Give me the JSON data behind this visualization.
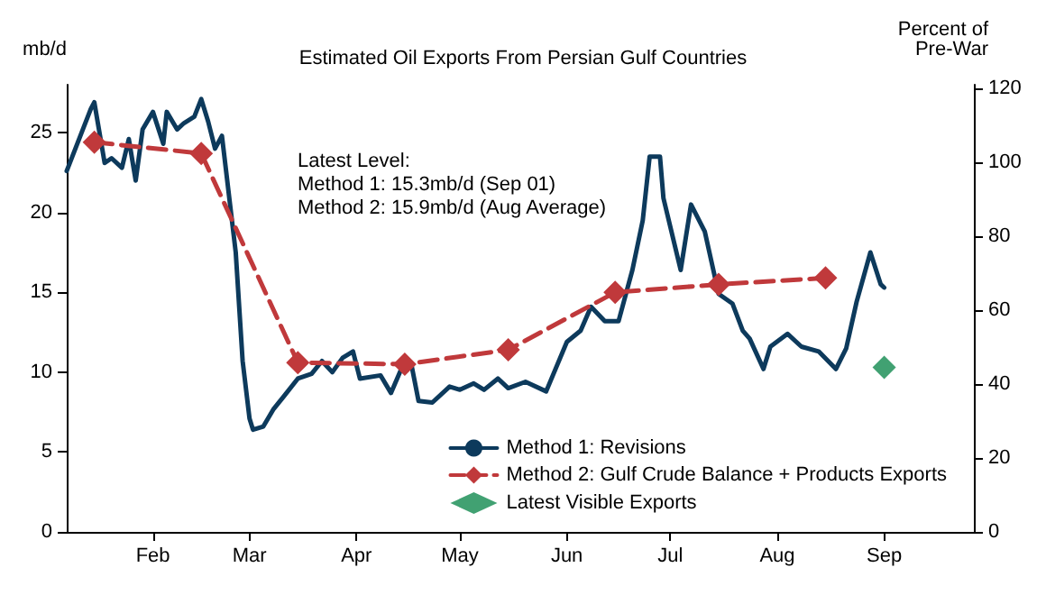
{
  "chart_data": {
    "type": "line",
    "title": "Estimated Oil Exports From Persian Gulf Countries",
    "ylabel": "mb/d",
    "y2label": "Percent of\nPre-War",
    "annotations": [
      "Latest Level:\nMethod 1: 15.3mb/d (Sep 01)\nMethod 2: 15.9mb/d (Aug Average)"
    ],
    "series": [
      {
        "name": "Method 1: Revisions",
        "color": "#0d3a5c",
        "marker": "none",
        "line_style": "solid",
        "x": [
          "--01-07",
          "--01-14",
          "--01-15",
          "--01-18",
          "--01-20",
          "--01-23",
          "--01-25",
          "--01-27",
          "--01-29",
          "--02-01",
          "--02-04",
          "--02-05",
          "--02-08",
          "--02-10",
          "--02-13",
          "--02-15",
          "--02-17",
          "--02-19",
          "--02-21",
          "--02-25",
          "--02-27",
          "--03-01",
          "--03-02",
          "--03-05",
          "--03-08",
          "--03-11",
          "--03-15",
          "--03-19",
          "--03-22",
          "--03-25",
          "--03-28",
          "--03-31",
          "--04-02",
          "--04-08",
          "--04-11",
          "--04-14",
          "--04-17",
          "--04-19",
          "--04-23",
          "--04-28",
          "--05-01",
          "--05-05",
          "--05-08",
          "--05-12",
          "--05-15",
          "--05-20",
          "--05-26",
          "--06-01",
          "--06-05",
          "--06-08",
          "--06-12",
          "--06-16",
          "--06-20",
          "--06-23",
          "--06-25",
          "--06-28",
          "--06-29",
          "--07-04",
          "--07-07",
          "--07-11",
          "--07-15",
          "--07-19",
          "--07-22",
          "--07-24",
          "--07-28",
          "--07-30",
          "--08-04",
          "--08-08",
          "--08-13",
          "--08-18",
          "--08-21",
          "--08-24",
          "--08-28",
          "--08-31",
          "--09-01"
        ],
        "values": [
          22.6,
          26.5,
          26.9,
          23.1,
          23.4,
          22.8,
          24.6,
          22.0,
          25.2,
          26.3,
          24.3,
          26.3,
          25.2,
          25.6,
          26.0,
          27.1,
          25.7,
          24.0,
          24.8,
          17.5,
          10.7,
          7.1,
          6.4,
          6.6,
          7.7,
          8.5,
          9.6,
          9.9,
          10.7,
          10.0,
          10.9,
          11.3,
          9.6,
          9.8,
          8.7,
          10.2,
          10.4,
          8.2,
          8.1,
          9.1,
          8.9,
          9.3,
          8.9,
          9.6,
          9.0,
          9.4,
          8.8,
          11.9,
          12.6,
          14.1,
          13.2,
          13.2,
          16.4,
          19.5,
          23.5,
          23.5,
          20.9,
          16.4,
          20.5,
          18.8,
          14.9,
          14.3,
          12.6,
          12.1,
          10.2,
          11.6,
          12.4,
          11.6,
          11.3,
          10.2,
          11.5,
          14.4,
          17.5,
          15.5,
          15.3
        ]
      },
      {
        "name": "Method 2: Gulf Crude Balance + Products Exports",
        "color": "#c0393b",
        "marker": "diamond",
        "line_style": "dashed",
        "x": [
          "--01-15",
          "--02-15",
          "--03-15",
          "--04-15",
          "--05-15",
          "--06-15",
          "--07-15",
          "--08-15"
        ],
        "values": [
          24.4,
          23.7,
          10.6,
          10.5,
          11.4,
          15.0,
          15.5,
          15.9
        ]
      },
      {
        "name": "Latest Visible Exports",
        "type": "scatter",
        "color": "#118a4f",
        "marker": "diamond",
        "x": [
          "--09-01"
        ],
        "values": [
          10.3
        ]
      }
    ],
    "xlim": [
      "--01-07",
      "--09-27"
    ],
    "xticks": [
      {
        "value": "--02-01",
        "label": "Feb"
      },
      {
        "value": "--03-01",
        "label": "Mar"
      },
      {
        "value": "--04-01",
        "label": "Apr"
      },
      {
        "value": "--05-01",
        "label": "May"
      },
      {
        "value": "--06-01",
        "label": "Jun"
      },
      {
        "value": "--07-01",
        "label": "Jul"
      },
      {
        "value": "--08-01",
        "label": "Aug"
      },
      {
        "value": "--09-01",
        "label": "Sep"
      }
    ],
    "ylim": [
      0,
      28
    ],
    "yticks": [
      0,
      5,
      10,
      15,
      20,
      25
    ],
    "y2lim": [
      0,
      121
    ],
    "y2ticks": [
      0,
      20,
      40,
      60,
      80,
      100,
      120
    ],
    "grid": false,
    "legend": "bottom right"
  }
}
